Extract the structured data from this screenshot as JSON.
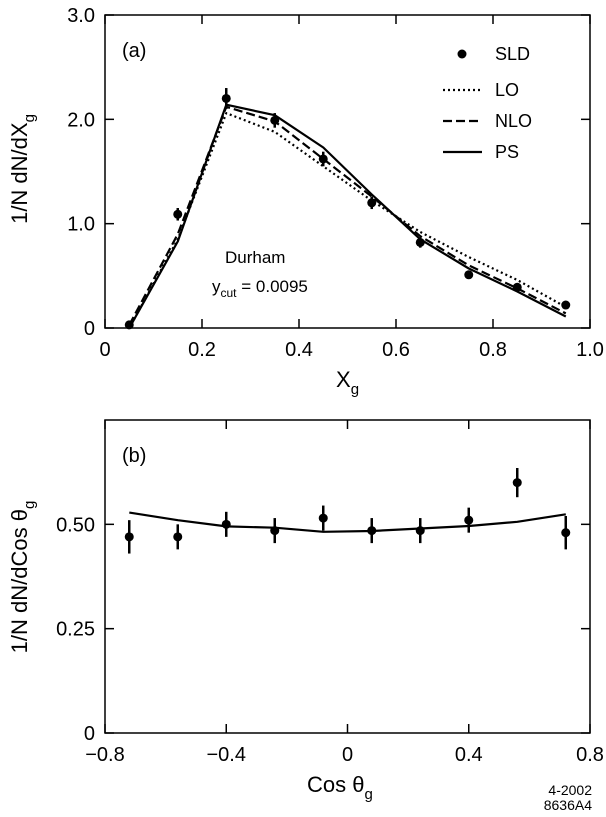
{
  "chart_data": [
    {
      "type": "scatter",
      "panel_label": "(a)",
      "xlabel": "X",
      "xlabel_sub": "g",
      "ylabel": "1/N dN/dX",
      "ylabel_sub": "g",
      "xlim": [
        0,
        1.0
      ],
      "ylim": [
        0,
        3.0
      ],
      "xticks": [
        0,
        0.2,
        0.4,
        0.6,
        0.8,
        1.0
      ],
      "xtick_labels": [
        "0",
        "0.2",
        "0.4",
        "0.6",
        "0.8",
        "1.0"
      ],
      "yticks": [
        0,
        1.0,
        2.0,
        3.0
      ],
      "ytick_labels": [
        "0",
        "1.0",
        "2.0",
        "3.0"
      ],
      "annotation": {
        "algorithm": "Durham",
        "ycut_main": "y",
        "ycut_sub": "cut",
        "ycut_value": " = 0.0095"
      },
      "legend": [
        {
          "label": "SLD",
          "style": "marker"
        },
        {
          "label": "LO",
          "style": "dotted"
        },
        {
          "label": "NLO",
          "style": "dashed"
        },
        {
          "label": "PS",
          "style": "solid"
        }
      ],
      "series": [
        {
          "name": "SLD",
          "style": "marker",
          "points": [
            {
              "x": 0.05,
              "y": 0.03,
              "err": 0.03
            },
            {
              "x": 0.15,
              "y": 1.09,
              "err": 0.06
            },
            {
              "x": 0.25,
              "y": 2.2,
              "err": 0.1
            },
            {
              "x": 0.35,
              "y": 1.99,
              "err": 0.07
            },
            {
              "x": 0.45,
              "y": 1.62,
              "err": 0.07
            },
            {
              "x": 0.55,
              "y": 1.2,
              "err": 0.06
            },
            {
              "x": 0.65,
              "y": 0.82,
              "err": 0.05
            },
            {
              "x": 0.75,
              "y": 0.51,
              "err": 0.04
            },
            {
              "x": 0.85,
              "y": 0.39,
              "err": 0.04
            },
            {
              "x": 0.95,
              "y": 0.22,
              "err": 0.03
            }
          ]
        },
        {
          "name": "LO",
          "style": "dotted",
          "x": [
            0.05,
            0.15,
            0.25,
            0.35,
            0.45,
            0.55,
            0.65,
            0.75,
            0.85,
            0.95
          ],
          "y": [
            0.0,
            0.85,
            2.06,
            1.88,
            1.55,
            1.22,
            0.92,
            0.68,
            0.46,
            0.2
          ]
        },
        {
          "name": "NLO",
          "style": "dashed",
          "x": [
            0.05,
            0.15,
            0.25,
            0.35,
            0.45,
            0.55,
            0.65,
            0.75,
            0.85,
            0.95
          ],
          "y": [
            0.03,
            0.9,
            2.12,
            1.98,
            1.62,
            1.26,
            0.88,
            0.6,
            0.38,
            0.14
          ]
        },
        {
          "name": "PS",
          "style": "solid",
          "x": [
            0.05,
            0.15,
            0.25,
            0.35,
            0.45,
            0.55,
            0.65,
            0.75,
            0.85,
            0.95
          ],
          "y": [
            0.0,
            0.83,
            2.14,
            2.04,
            1.73,
            1.28,
            0.85,
            0.57,
            0.35,
            0.11
          ]
        }
      ]
    },
    {
      "type": "scatter",
      "panel_label": "(b)",
      "xlabel": "Cos θ",
      "xlabel_sub": "g",
      "ylabel": "1/N dN/dCos θ",
      "ylabel_sub": "g",
      "xlim": [
        -0.8,
        0.8
      ],
      "ylim": [
        0,
        0.75
      ],
      "xticks": [
        -0.8,
        -0.4,
        0,
        0.4,
        0.8
      ],
      "xtick_labels": [
        "−0.8",
        "−0.4",
        "0",
        "0.4",
        "0.8"
      ],
      "yticks": [
        0,
        0.25,
        0.5
      ],
      "ytick_labels": [
        "0",
        "0.25",
        "0.50"
      ],
      "series": [
        {
          "name": "SLD",
          "style": "marker",
          "points": [
            {
              "x": -0.72,
              "y": 0.47,
              "err": 0.04
            },
            {
              "x": -0.56,
              "y": 0.47,
              "err": 0.03
            },
            {
              "x": -0.4,
              "y": 0.5,
              "err": 0.03
            },
            {
              "x": -0.24,
              "y": 0.485,
              "err": 0.03
            },
            {
              "x": -0.08,
              "y": 0.515,
              "err": 0.03
            },
            {
              "x": 0.08,
              "y": 0.485,
              "err": 0.03
            },
            {
              "x": 0.24,
              "y": 0.485,
              "err": 0.03
            },
            {
              "x": 0.4,
              "y": 0.51,
              "err": 0.03
            },
            {
              "x": 0.56,
              "y": 0.6,
              "err": 0.035
            },
            {
              "x": 0.72,
              "y": 0.48,
              "err": 0.04
            }
          ]
        },
        {
          "name": "PS",
          "style": "solid",
          "x": [
            -0.72,
            -0.56,
            -0.4,
            -0.24,
            -0.08,
            0.08,
            0.24,
            0.4,
            0.56,
            0.72
          ],
          "y": [
            0.528,
            0.51,
            0.495,
            0.492,
            0.482,
            0.484,
            0.49,
            0.496,
            0.506,
            0.524
          ]
        }
      ]
    }
  ],
  "footer": {
    "line1": "4-2002",
    "line2": "8636A4"
  }
}
